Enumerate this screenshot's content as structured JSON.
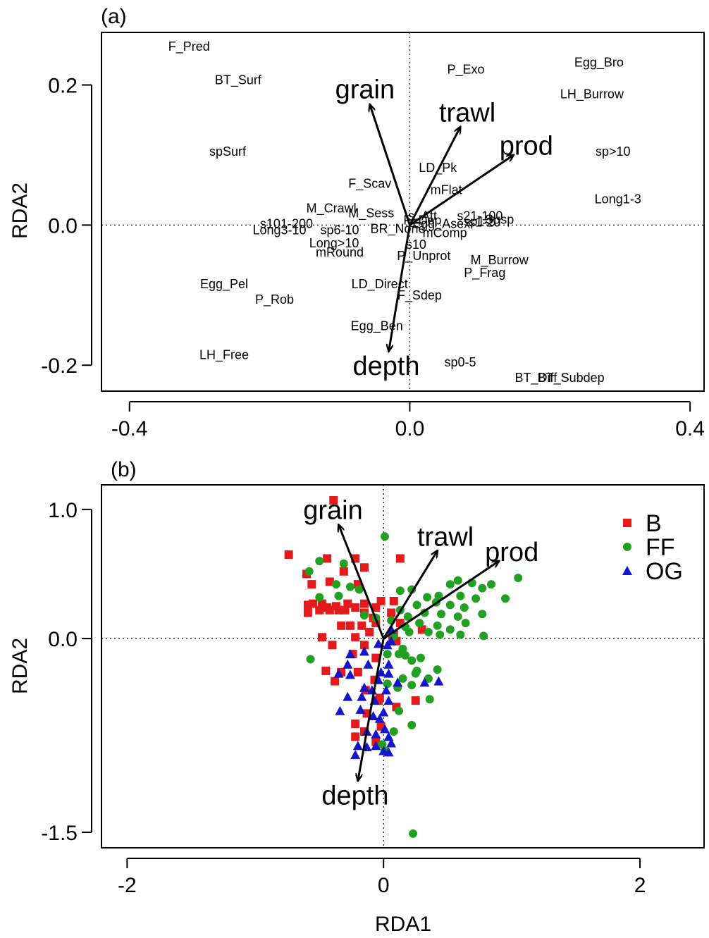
{
  "colors": {
    "B": "#e41a1c",
    "FF": "#22a022",
    "OG": "#1515cc",
    "axis": "#000000"
  },
  "panels": {
    "a": {
      "label": "(a)",
      "ylabel": "RDA2"
    },
    "b": {
      "label": "(b)",
      "ylabel": "RDA2",
      "xlabel": "RDA1"
    }
  },
  "chart_data": [
    {
      "type": "scatter",
      "panel": "a",
      "title": "(a)",
      "xlabel": "",
      "ylabel": "RDA2",
      "xlim": [
        -0.44,
        0.42
      ],
      "ylim": [
        -0.237,
        0.275
      ],
      "xticks": [
        -0.4,
        0.0,
        0.4
      ],
      "xtick_labels": [
        "-0.4",
        "0.0",
        "0.4"
      ],
      "yticks": [
        -0.2,
        0.0,
        0.2
      ],
      "ytick_labels": [
        "-0.2",
        "0.0",
        "0.2"
      ],
      "reference_lines": {
        "x": 0,
        "y": 0,
        "style": "dotted"
      },
      "traits": [
        {
          "label": "F_Pred",
          "x": -0.315,
          "y": 0.255
        },
        {
          "label": "BT_Surf",
          "x": -0.245,
          "y": 0.207
        },
        {
          "label": "spSurf",
          "x": -0.26,
          "y": 0.105
        },
        {
          "label": "P_Exo",
          "x": 0.08,
          "y": 0.222
        },
        {
          "label": "Egg_Bro",
          "x": 0.27,
          "y": 0.232
        },
        {
          "label": "LH_Burrow",
          "x": 0.26,
          "y": 0.187
        },
        {
          "label": "sp>10",
          "x": 0.29,
          "y": 0.105
        },
        {
          "label": "LD_Pk",
          "x": 0.04,
          "y": 0.082
        },
        {
          "label": "F_Scav",
          "x": -0.057,
          "y": 0.059
        },
        {
          "label": "mFlat",
          "x": 0.052,
          "y": 0.05
        },
        {
          "label": "Long1-3",
          "x": 0.297,
          "y": 0.037
        },
        {
          "label": "M_Crawl",
          "x": -0.112,
          "y": 0.024
        },
        {
          "label": "M_Sess",
          "x": -0.055,
          "y": 0.017
        },
        {
          "label": "s_Att",
          "x": 0.018,
          "y": 0.013
        },
        {
          "label": "s21-100",
          "x": 0.1,
          "y": 0.013
        },
        {
          "label": "s101-200",
          "x": -0.176,
          "y": 0.002
        },
        {
          "label": "Long3-10",
          "x": -0.186,
          "y": -0.007
        },
        {
          "label": "sp6-10",
          "x": -0.1,
          "y": -0.007
        },
        {
          "label": "BR_None",
          "x": -0.017,
          "y": -0.005
        },
        {
          "label": "F_Dep",
          "x": 0.018,
          "y": 0.007
        },
        {
          "label": "Egg_Asex",
          "x": 0.045,
          "y": 0.002
        },
        {
          "label": "sp1-5",
          "x": 0.1,
          "y": 0.005
        },
        {
          "label": "s1-20",
          "x": 0.107,
          "y": 0.004
        },
        {
          "label": "Susp",
          "x": 0.128,
          "y": 0.008
        },
        {
          "label": "mComp",
          "x": 0.05,
          "y": -0.011
        },
        {
          "label": "Long>10",
          "x": -0.108,
          "y": -0.026
        },
        {
          "label": "s10",
          "x": 0.009,
          "y": -0.028
        },
        {
          "label": "mRound",
          "x": -0.1,
          "y": -0.039
        },
        {
          "label": "P_Unprot",
          "x": 0.02,
          "y": -0.044
        },
        {
          "label": "M_Burrow",
          "x": 0.128,
          "y": -0.05
        },
        {
          "label": "P_Frag",
          "x": 0.107,
          "y": -0.068
        },
        {
          "label": "Egg_Pel",
          "x": -0.265,
          "y": -0.084
        },
        {
          "label": "LD_Direct",
          "x": -0.043,
          "y": -0.084
        },
        {
          "label": "P_Rob",
          "x": -0.193,
          "y": -0.106
        },
        {
          "label": "F_Sdep",
          "x": 0.014,
          "y": -0.1
        },
        {
          "label": "Egg_Ben",
          "x": -0.047,
          "y": -0.144
        },
        {
          "label": "LH_Free",
          "x": -0.265,
          "y": -0.185
        },
        {
          "label": "sp0-5",
          "x": 0.072,
          "y": -0.196
        },
        {
          "label": "BT_Diff",
          "x": 0.18,
          "y": -0.218
        },
        {
          "label": "BT_Subdep",
          "x": 0.23,
          "y": -0.218
        }
      ],
      "arrows": [
        {
          "label": "grain",
          "x": -0.057,
          "y": 0.172
        },
        {
          "label": "trawl",
          "x": 0.072,
          "y": 0.14
        },
        {
          "label": "prod",
          "x": 0.148,
          "y": 0.1
        },
        {
          "label": "depth",
          "x": -0.03,
          "y": -0.18
        }
      ]
    },
    {
      "type": "scatter",
      "panel": "b",
      "title": "(b)",
      "xlabel": "RDA1",
      "ylabel": "RDA2",
      "xlim": [
        -2.2,
        2.5
      ],
      "ylim": [
        -1.62,
        1.19
      ],
      "xticks": [
        -2,
        0,
        2
      ],
      "xtick_labels": [
        "-2",
        "0",
        "2"
      ],
      "yticks": [
        -1.5,
        0.0,
        1.0
      ],
      "ytick_labels": [
        "-1.5",
        "0.0",
        "1.0"
      ],
      "reference_lines": {
        "x": 0,
        "y": 0,
        "style": "dotted"
      },
      "legend": {
        "position": "top-right",
        "entries": [
          "B",
          "FF",
          "OG"
        ]
      },
      "arrows": [
        {
          "label": "grain",
          "x": -0.35,
          "y": 0.88
        },
        {
          "label": "trawl",
          "x": 0.42,
          "y": 0.68
        },
        {
          "label": "prod",
          "x": 0.9,
          "y": 0.6
        },
        {
          "label": "depth",
          "x": -0.2,
          "y": -1.1
        }
      ],
      "series": [
        {
          "name": "B",
          "marker": "square",
          "points": [
            [
              -0.39,
              1.07
            ],
            [
              -0.74,
              0.65
            ],
            [
              -0.44,
              0.62
            ],
            [
              -0.22,
              0.62
            ],
            [
              0.13,
              0.62
            ],
            [
              -0.6,
              0.5
            ],
            [
              -0.31,
              0.52
            ],
            [
              -0.15,
              0.55
            ],
            [
              -0.56,
              0.42
            ],
            [
              -0.42,
              0.44
            ],
            [
              -0.2,
              0.42
            ],
            [
              -0.55,
              0.27
            ],
            [
              -0.48,
              0.27
            ],
            [
              -0.37,
              0.25
            ],
            [
              -0.28,
              0.27
            ],
            [
              -0.15,
              0.27
            ],
            [
              -0.06,
              0.24
            ],
            [
              -0.59,
              0.26
            ],
            [
              -0.44,
              0.24
            ],
            [
              -0.35,
              0.22
            ],
            [
              -0.22,
              0.24
            ],
            [
              -0.02,
              0.29
            ],
            [
              -0.59,
              0.2
            ],
            [
              -0.5,
              0.22
            ],
            [
              -0.42,
              0.22
            ],
            [
              -0.3,
              0.22
            ],
            [
              -0.15,
              0.2
            ],
            [
              -0.08,
              0.16
            ],
            [
              0.08,
              0.29
            ],
            [
              0.06,
              0.2
            ],
            [
              -0.33,
              0.1
            ],
            [
              -0.26,
              0.1
            ],
            [
              -0.17,
              0.1
            ],
            [
              -0.06,
              0.12
            ],
            [
              0.13,
              0.12
            ],
            [
              0.3,
              0.07
            ],
            [
              -0.48,
              0.01
            ],
            [
              -0.22,
              0.01
            ],
            [
              -0.11,
              0.05
            ],
            [
              -0.4,
              -0.05
            ],
            [
              -0.15,
              -0.05
            ],
            [
              -0.24,
              -0.12
            ],
            [
              -0.06,
              -0.15
            ],
            [
              -0.33,
              -0.26
            ],
            [
              -0.2,
              -0.26
            ],
            [
              -0.07,
              -0.32
            ],
            [
              -0.38,
              -0.33
            ],
            [
              -0.14,
              -0.4
            ],
            [
              -0.04,
              -0.48
            ],
            [
              0.1,
              -0.53
            ],
            [
              0.25,
              -0.48
            ],
            [
              -0.13,
              -0.58
            ],
            [
              -0.22,
              -0.66
            ],
            [
              -0.02,
              -0.68
            ],
            [
              -0.22,
              -0.76
            ],
            [
              -0.06,
              -0.8
            ],
            [
              -0.15,
              -0.72
            ],
            [
              -0.03,
              -0.46
            ],
            [
              0.07,
              0.01
            ],
            [
              0.1,
              -0.02
            ],
            [
              -0.45,
              -0.25
            ],
            [
              0.08,
              0.03
            ]
          ]
        },
        {
          "name": "FF",
          "marker": "circle",
          "points": [
            [
              0.01,
              0.79
            ],
            [
              -0.5,
              0.6
            ],
            [
              -0.31,
              0.58
            ],
            [
              -0.58,
              0.52
            ],
            [
              -0.37,
              0.42
            ],
            [
              -0.26,
              0.4
            ],
            [
              -0.35,
              0.33
            ],
            [
              -0.5,
              0.32
            ],
            [
              -0.19,
              0.38
            ],
            [
              0.13,
              0.37
            ],
            [
              0.22,
              0.38
            ],
            [
              0.34,
              0.32
            ],
            [
              0.52,
              0.42
            ],
            [
              0.58,
              0.45
            ],
            [
              0.69,
              0.43
            ],
            [
              0.77,
              0.39
            ],
            [
              0.84,
              0.42
            ],
            [
              1.05,
              0.47
            ],
            [
              0.6,
              0.33
            ],
            [
              0.72,
              0.31
            ],
            [
              0.43,
              0.33
            ],
            [
              0.26,
              0.26
            ],
            [
              0.41,
              0.28
            ],
            [
              0.52,
              0.26
            ],
            [
              0.63,
              0.24
            ],
            [
              0.77,
              0.19
            ],
            [
              0.95,
              0.31
            ],
            [
              0.13,
              0.22
            ],
            [
              0.19,
              0.17
            ],
            [
              0.32,
              0.2
            ],
            [
              0.45,
              0.19
            ],
            [
              0.58,
              0.17
            ],
            [
              0.64,
              0.12
            ],
            [
              0.78,
              0.02
            ],
            [
              0.52,
              0.07
            ],
            [
              0.42,
              0.1
            ],
            [
              -0.15,
              0.18
            ],
            [
              -0.06,
              0.16
            ],
            [
              0.06,
              0.14
            ],
            [
              0.17,
              0.09
            ],
            [
              0.28,
              0.12
            ],
            [
              0.35,
              0.05
            ],
            [
              0.44,
              0.03
            ],
            [
              0.6,
              0.03
            ],
            [
              0.08,
              0.02
            ],
            [
              0.2,
              0.05
            ],
            [
              0.12,
              -0.12
            ],
            [
              0.03,
              -0.12
            ],
            [
              0.22,
              -0.17
            ],
            [
              0.29,
              -0.15
            ],
            [
              0.42,
              -0.24
            ],
            [
              0.26,
              -0.25
            ],
            [
              0.15,
              -0.31
            ],
            [
              0.11,
              -0.38
            ],
            [
              0.22,
              -0.36
            ],
            [
              0.25,
              -0.27
            ],
            [
              -0.57,
              -0.16
            ],
            [
              0.17,
              -0.13
            ],
            [
              0.35,
              -0.31
            ],
            [
              0.08,
              -0.72
            ],
            [
              0.22,
              -0.67
            ],
            [
              0.01,
              -0.87
            ],
            [
              0.36,
              -0.47
            ],
            [
              -0.01,
              -0.82
            ],
            [
              0.03,
              -0.35
            ],
            [
              0.23,
              -1.51
            ],
            [
              0.12,
              -0.56
            ],
            [
              0.15,
              -0.08
            ]
          ]
        },
        {
          "name": "OG",
          "marker": "triangle",
          "points": [
            [
              -0.26,
              -0.12
            ],
            [
              -0.15,
              -0.1
            ],
            [
              -0.04,
              -0.04
            ],
            [
              0.03,
              -0.05
            ],
            [
              0.06,
              -0.02
            ],
            [
              -0.28,
              -0.2
            ],
            [
              -0.12,
              -0.2
            ],
            [
              0.04,
              -0.2
            ],
            [
              -0.35,
              -0.27
            ],
            [
              -0.26,
              -0.28
            ],
            [
              -0.02,
              -0.26
            ],
            [
              0.11,
              -0.34
            ],
            [
              0.32,
              -0.34
            ],
            [
              0.43,
              -0.33
            ],
            [
              -0.15,
              -0.38
            ],
            [
              -0.04,
              -0.32
            ],
            [
              0.02,
              -0.4
            ],
            [
              -0.28,
              -0.45
            ],
            [
              -0.17,
              -0.45
            ],
            [
              -0.07,
              -0.48
            ],
            [
              0.04,
              -0.48
            ],
            [
              -0.34,
              -0.56
            ],
            [
              -0.18,
              -0.55
            ],
            [
              -0.03,
              -0.62
            ],
            [
              0.01,
              -0.7
            ],
            [
              -0.13,
              -0.72
            ],
            [
              -0.06,
              -0.74
            ],
            [
              0.04,
              -0.76
            ],
            [
              0.06,
              -0.81
            ],
            [
              -0.13,
              -0.84
            ],
            [
              -0.2,
              -0.83
            ],
            [
              -0.06,
              -0.83
            ],
            [
              0.0,
              -0.87
            ],
            [
              0.04,
              -0.88
            ],
            [
              -0.22,
              -0.9
            ],
            [
              0.04,
              -0.27
            ],
            [
              -0.08,
              -0.6
            ],
            [
              0.06,
              0.07
            ],
            [
              -0.09,
              -0.4
            ],
            [
              0.0,
              -0.57
            ]
          ]
        }
      ]
    }
  ]
}
